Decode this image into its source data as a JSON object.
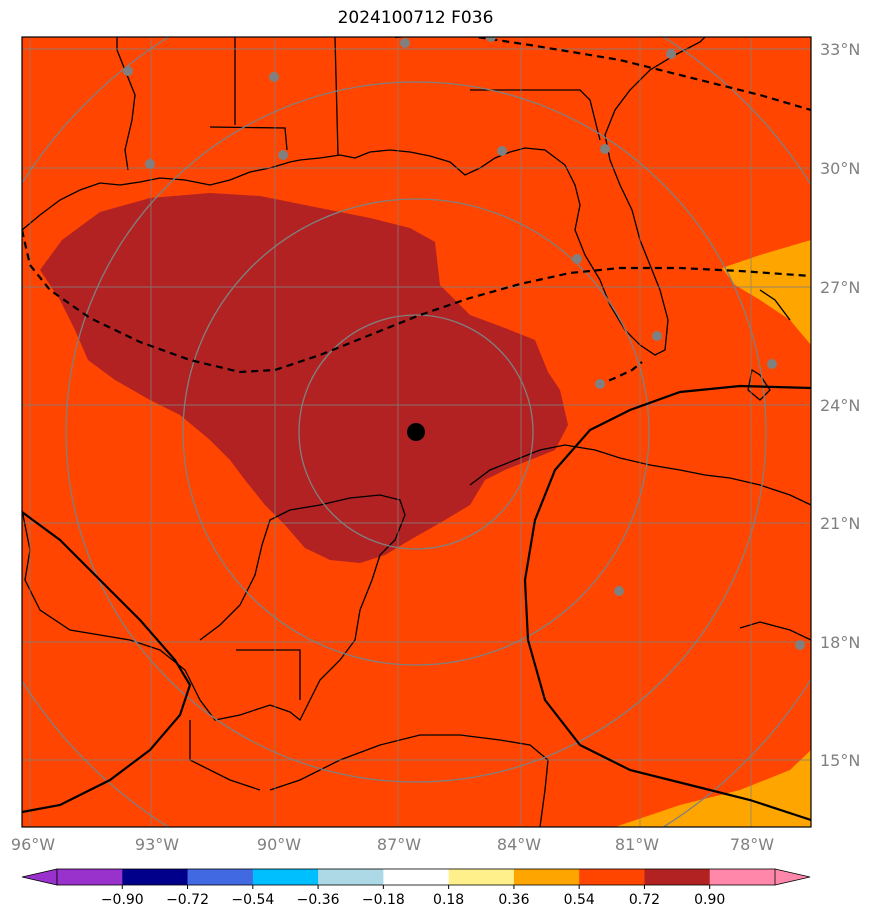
{
  "title": "2024100712 F036",
  "map": {
    "lon_labels": [
      "96°W",
      "93°W",
      "90°W",
      "87°W",
      "84°W",
      "81°W",
      "78°W"
    ],
    "lat_labels": [
      "33°N",
      "30°N",
      "27°N",
      "24°N",
      "21°N",
      "18°N",
      "15°N"
    ],
    "colors": {
      "background_fill": "#ff4500",
      "high_fill": "#b22222",
      "low_fill": "#ffa500",
      "gridline": "#808080",
      "coast": "#000000",
      "center_marker": "#000000",
      "station_dot": "#808080"
    }
  },
  "colorbar": {
    "ticks": [
      "−0.90",
      "−0.72",
      "−0.54",
      "−0.36",
      "−0.18",
      "0.18",
      "0.36",
      "0.54",
      "0.72",
      "0.90"
    ],
    "colors": [
      "#9932cc",
      "#00008b",
      "#4169e1",
      "#00bfff",
      "#add8e6",
      "#ffffff",
      "#fff08c",
      "#ffa500",
      "#ff4500",
      "#b22222"
    ],
    "under_color": "#9932cc",
    "over_color": "#ff88aa"
  }
}
